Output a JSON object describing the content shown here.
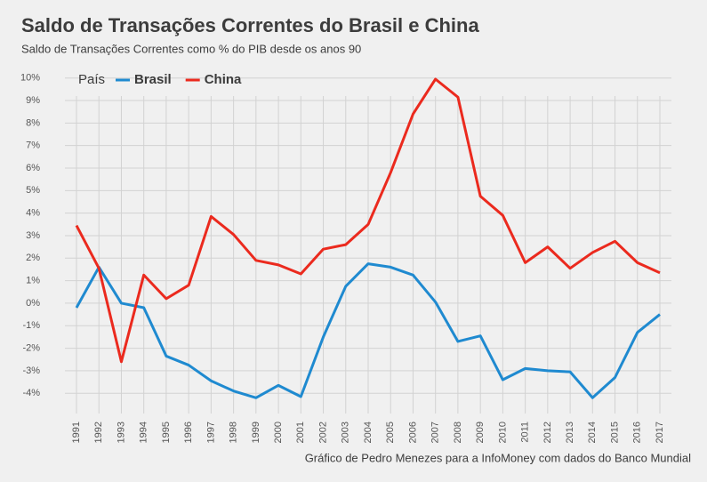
{
  "chart_data": {
    "type": "line",
    "title": "Saldo de Transações Correntes do Brasil e China",
    "subtitle": "Saldo de Transações Correntes como % do PIB desde os anos 90",
    "caption": "Gráfico de Pedro Menezes para a InfoMoney com dados do Banco Mundial",
    "legend_title": "País",
    "legend_position": "top-left",
    "grid": true,
    "categories": [
      "1991",
      "1992",
      "1993",
      "1994",
      "1995",
      "1996",
      "1997",
      "1998",
      "1999",
      "2000",
      "2001",
      "2002",
      "2003",
      "2004",
      "2005",
      "2006",
      "2007",
      "2008",
      "2009",
      "2010",
      "2011",
      "2012",
      "2013",
      "2014",
      "2015",
      "2016",
      "2017"
    ],
    "series": [
      {
        "name": "Brasil",
        "color": "#1f8ad0",
        "values": [
          -0.2,
          1.6,
          0.0,
          -0.2,
          -2.35,
          -2.75,
          -3.45,
          -3.9,
          -4.2,
          -3.65,
          -4.15,
          -1.5,
          0.75,
          1.75,
          1.6,
          1.25,
          0.05,
          -1.7,
          -1.45,
          -3.4,
          -2.9,
          -3.0,
          -3.05,
          -4.2,
          -3.3,
          -1.3,
          -0.5
        ]
      },
      {
        "name": "China",
        "color": "#eb2a1e",
        "values": [
          3.45,
          1.55,
          -2.6,
          1.25,
          0.2,
          0.8,
          3.85,
          3.05,
          1.9,
          1.7,
          1.3,
          2.4,
          2.6,
          3.5,
          5.8,
          8.4,
          9.95,
          9.15,
          4.75,
          3.9,
          1.8,
          2.5,
          1.55,
          2.25,
          2.75,
          1.8,
          1.35
        ]
      }
    ],
    "ylim": [
      -4.9,
      10.7
    ],
    "yticks": [
      {
        "value": -4,
        "label": "-4%"
      },
      {
        "value": -3,
        "label": "-3%"
      },
      {
        "value": -2,
        "label": "-2%"
      },
      {
        "value": -1,
        "label": "-1%"
      },
      {
        "value": 0,
        "label": "0%"
      },
      {
        "value": 1,
        "label": "1%"
      },
      {
        "value": 2,
        "label": "2%"
      },
      {
        "value": 3,
        "label": "3%"
      },
      {
        "value": 4,
        "label": "4%"
      },
      {
        "value": 5,
        "label": "5%"
      },
      {
        "value": 6,
        "label": "6%"
      },
      {
        "value": 7,
        "label": "7%"
      },
      {
        "value": 8,
        "label": "8%"
      },
      {
        "value": 9,
        "label": "9%"
      },
      {
        "value": 10,
        "label": "10%"
      }
    ]
  }
}
